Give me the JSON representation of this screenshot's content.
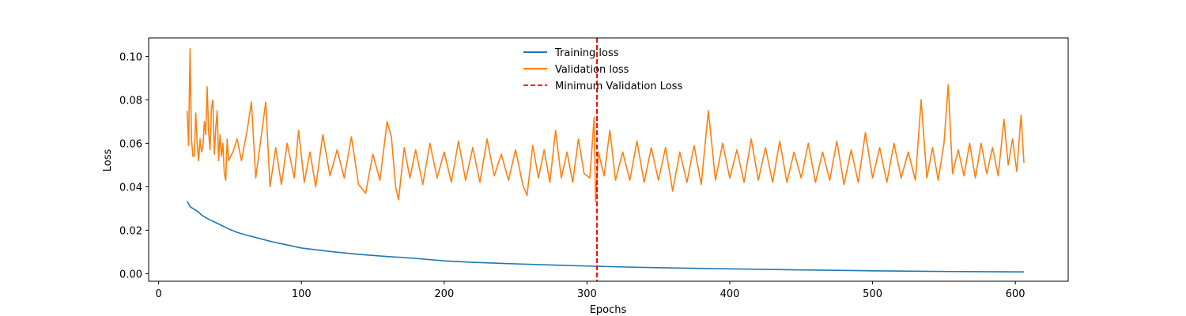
{
  "chart_data": {
    "type": "line",
    "title": "",
    "xlabel": "Epochs",
    "ylabel": "Loss",
    "xlim": [
      -7,
      637
    ],
    "ylim": [
      -0.0035,
      0.1085
    ],
    "x_ticks": [
      0,
      100,
      200,
      300,
      400,
      500,
      600
    ],
    "y_ticks": [
      0.0,
      0.02,
      0.04,
      0.06,
      0.08,
      0.1
    ],
    "x_tick_labels": [
      "0",
      "100",
      "200",
      "300",
      "400",
      "500",
      "600"
    ],
    "y_tick_labels": [
      "0.00",
      "0.02",
      "0.04",
      "0.06",
      "0.08",
      "0.10"
    ],
    "grid": false,
    "legend_position": "top-center",
    "series": [
      {
        "name": "Training loss",
        "color": "#1f77b4",
        "style": "solid",
        "x_range": [
          20,
          606
        ],
        "points": [
          [
            20,
            0.0333
          ],
          [
            22,
            0.0308
          ],
          [
            25,
            0.0296
          ],
          [
            28,
            0.0283
          ],
          [
            30,
            0.027
          ],
          [
            33,
            0.0258
          ],
          [
            36,
            0.0247
          ],
          [
            40,
            0.0235
          ],
          [
            45,
            0.0219
          ],
          [
            50,
            0.0203
          ],
          [
            55,
            0.019
          ],
          [
            60,
            0.018
          ],
          [
            70,
            0.0163
          ],
          [
            80,
            0.0146
          ],
          [
            90,
            0.0132
          ],
          [
            100,
            0.0118
          ],
          [
            120,
            0.0102
          ],
          [
            140,
            0.0089
          ],
          [
            160,
            0.0079
          ],
          [
            180,
            0.007
          ],
          [
            200,
            0.0059
          ],
          [
            220,
            0.0052
          ],
          [
            250,
            0.0045
          ],
          [
            280,
            0.0039
          ],
          [
            300,
            0.0035
          ],
          [
            330,
            0.003
          ],
          [
            360,
            0.0026
          ],
          [
            400,
            0.0022
          ],
          [
            450,
            0.0017
          ],
          [
            500,
            0.0013
          ],
          [
            550,
            0.001
          ],
          [
            606,
            0.0008
          ]
        ]
      },
      {
        "name": "Validation loss",
        "color": "#ff7f0e",
        "style": "solid",
        "x_range": [
          20,
          606
        ],
        "points": [
          [
            20,
            0.075
          ],
          [
            21,
            0.059
          ],
          [
            22,
            0.1035
          ],
          [
            23,
            0.062
          ],
          [
            24,
            0.054
          ],
          [
            25,
            0.054
          ],
          [
            26,
            0.074
          ],
          [
            27,
            0.06
          ],
          [
            28,
            0.052
          ],
          [
            29,
            0.062
          ],
          [
            30,
            0.056
          ],
          [
            31,
            0.058
          ],
          [
            32,
            0.07
          ],
          [
            33,
            0.064
          ],
          [
            34,
            0.086
          ],
          [
            35,
            0.065
          ],
          [
            36,
            0.057
          ],
          [
            37,
            0.076
          ],
          [
            38,
            0.08
          ],
          [
            39,
            0.055
          ],
          [
            40,
            0.067
          ],
          [
            41,
            0.075
          ],
          [
            42,
            0.052
          ],
          [
            43,
            0.064
          ],
          [
            44,
            0.054
          ],
          [
            45,
            0.06
          ],
          [
            46,
            0.046
          ],
          [
            47,
            0.043
          ],
          [
            48,
            0.062
          ],
          [
            49,
            0.052
          ],
          [
            52,
            0.056
          ],
          [
            55,
            0.062
          ],
          [
            58,
            0.052
          ],
          [
            62,
            0.066
          ],
          [
            65,
            0.079
          ],
          [
            68,
            0.044
          ],
          [
            72,
            0.064
          ],
          [
            75,
            0.079
          ],
          [
            78,
            0.04
          ],
          [
            82,
            0.058
          ],
          [
            86,
            0.041
          ],
          [
            90,
            0.06
          ],
          [
            95,
            0.044
          ],
          [
            98,
            0.066
          ],
          [
            102,
            0.042
          ],
          [
            106,
            0.056
          ],
          [
            110,
            0.04
          ],
          [
            115,
            0.064
          ],
          [
            120,
            0.045
          ],
          [
            125,
            0.057
          ],
          [
            130,
            0.044
          ],
          [
            135,
            0.063
          ],
          [
            140,
            0.041
          ],
          [
            145,
            0.037
          ],
          [
            150,
            0.055
          ],
          [
            155,
            0.043
          ],
          [
            160,
            0.07
          ],
          [
            163,
            0.063
          ],
          [
            166,
            0.04
          ],
          [
            168,
            0.034
          ],
          [
            172,
            0.058
          ],
          [
            176,
            0.044
          ],
          [
            180,
            0.057
          ],
          [
            185,
            0.041
          ],
          [
            190,
            0.06
          ],
          [
            195,
            0.044
          ],
          [
            200,
            0.056
          ],
          [
            205,
            0.042
          ],
          [
            210,
            0.061
          ],
          [
            215,
            0.043
          ],
          [
            220,
            0.058
          ],
          [
            225,
            0.042
          ],
          [
            230,
            0.062
          ],
          [
            235,
            0.045
          ],
          [
            240,
            0.055
          ],
          [
            245,
            0.043
          ],
          [
            250,
            0.057
          ],
          [
            255,
            0.041
          ],
          [
            258,
            0.036
          ],
          [
            262,
            0.059
          ],
          [
            266,
            0.044
          ],
          [
            270,
            0.057
          ],
          [
            274,
            0.042
          ],
          [
            278,
            0.066
          ],
          [
            282,
            0.044
          ],
          [
            286,
            0.056
          ],
          [
            290,
            0.042
          ],
          [
            294,
            0.062
          ],
          [
            298,
            0.046
          ],
          [
            302,
            0.044
          ],
          [
            305,
            0.072
          ],
          [
            306,
            0.033
          ],
          [
            308,
            0.056
          ],
          [
            312,
            0.045
          ],
          [
            316,
            0.066
          ],
          [
            320,
            0.043
          ],
          [
            325,
            0.056
          ],
          [
            330,
            0.043
          ],
          [
            335,
            0.061
          ],
          [
            340,
            0.042
          ],
          [
            345,
            0.058
          ],
          [
            350,
            0.043
          ],
          [
            355,
            0.058
          ],
          [
            360,
            0.038
          ],
          [
            365,
            0.056
          ],
          [
            370,
            0.042
          ],
          [
            375,
            0.059
          ],
          [
            380,
            0.041
          ],
          [
            385,
            0.075
          ],
          [
            390,
            0.043
          ],
          [
            395,
            0.06
          ],
          [
            400,
            0.044
          ],
          [
            405,
            0.057
          ],
          [
            410,
            0.042
          ],
          [
            415,
            0.062
          ],
          [
            420,
            0.043
          ],
          [
            425,
            0.058
          ],
          [
            430,
            0.042
          ],
          [
            435,
            0.061
          ],
          [
            440,
            0.042
          ],
          [
            445,
            0.056
          ],
          [
            450,
            0.044
          ],
          [
            455,
            0.06
          ],
          [
            460,
            0.042
          ],
          [
            465,
            0.056
          ],
          [
            470,
            0.043
          ],
          [
            475,
            0.061
          ],
          [
            480,
            0.041
          ],
          [
            485,
            0.057
          ],
          [
            490,
            0.042
          ],
          [
            495,
            0.065
          ],
          [
            500,
            0.044
          ],
          [
            505,
            0.058
          ],
          [
            510,
            0.042
          ],
          [
            515,
            0.06
          ],
          [
            520,
            0.044
          ],
          [
            525,
            0.056
          ],
          [
            530,
            0.043
          ],
          [
            534,
            0.08
          ],
          [
            538,
            0.044
          ],
          [
            542,
            0.058
          ],
          [
            546,
            0.043
          ],
          [
            550,
            0.06
          ],
          [
            553,
            0.087
          ],
          [
            556,
            0.046
          ],
          [
            560,
            0.057
          ],
          [
            564,
            0.045
          ],
          [
            568,
            0.06
          ],
          [
            572,
            0.044
          ],
          [
            576,
            0.06
          ],
          [
            580,
            0.046
          ],
          [
            584,
            0.058
          ],
          [
            588,
            0.045
          ],
          [
            592,
            0.071
          ],
          [
            595,
            0.05
          ],
          [
            598,
            0.062
          ],
          [
            601,
            0.047
          ],
          [
            604,
            0.073
          ],
          [
            606,
            0.051
          ]
        ]
      }
    ],
    "vertical_line": {
      "name": "Minimum Validation Loss",
      "x": 307,
      "color": "#ff0000",
      "style": "dashed"
    }
  }
}
